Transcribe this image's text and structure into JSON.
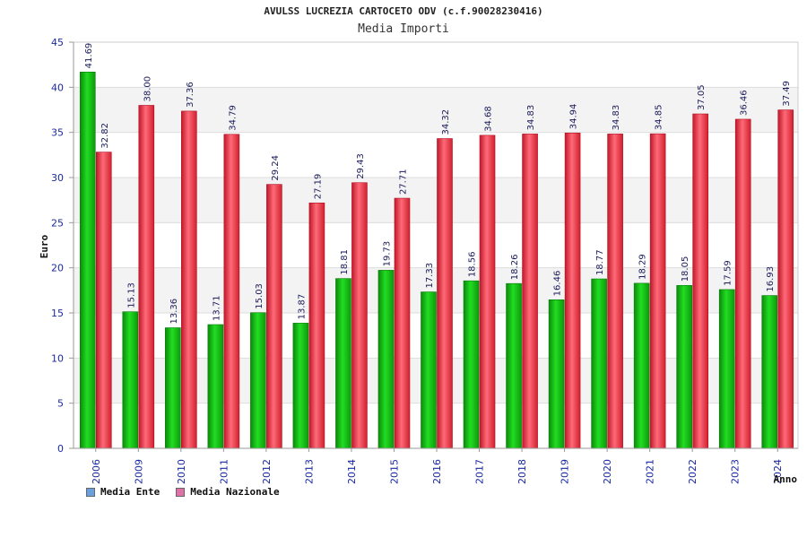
{
  "chart_data": {
    "type": "bar",
    "title": "AVULSS LUCREZIA CARTOCETO ODV (c.f.90028230416)",
    "subtitle": "Media Importi",
    "xlabel": "Anno",
    "ylabel": "Euro",
    "ylim": [
      0,
      45
    ],
    "yticks": [
      0,
      5,
      10,
      15,
      20,
      25,
      30,
      35,
      40,
      45
    ],
    "grid": true,
    "legend_position": "bottom-left",
    "categories": [
      "2006",
      "2009",
      "2010",
      "2011",
      "2012",
      "2013",
      "2014",
      "2015",
      "2016",
      "2017",
      "2018",
      "2019",
      "2020",
      "2021",
      "2022",
      "2023",
      "2024"
    ],
    "series": [
      {
        "name": "Media Ente",
        "legend_color": "#6a9fe0",
        "bar_color": "#11b811",
        "values": [
          41.69,
          15.13,
          13.36,
          13.71,
          15.03,
          13.87,
          18.81,
          19.73,
          17.33,
          18.56,
          18.26,
          16.46,
          18.77,
          18.29,
          18.05,
          17.59,
          16.93
        ],
        "labels": [
          "41.69",
          "15.13",
          "13.36",
          "13.71",
          "15.03",
          "13.87",
          "18.81",
          "19.73",
          "17.33",
          "18.56",
          "18.26",
          "16.46",
          "18.77",
          "18.29",
          "18.05",
          "17.59",
          "16.93"
        ]
      },
      {
        "name": "Media Nazionale",
        "legend_color": "#e070a8",
        "bar_color": "#ee3344",
        "values": [
          32.82,
          38.0,
          37.36,
          34.79,
          29.24,
          27.19,
          29.43,
          27.71,
          34.32,
          34.68,
          34.83,
          34.94,
          34.83,
          34.85,
          37.05,
          36.46,
          37.49
        ],
        "labels": [
          "32.82",
          "38.00",
          "37.36",
          "34.79",
          "29.24",
          "27.19",
          "29.43",
          "27.71",
          "34.32",
          "34.68",
          "34.83",
          "34.94",
          "34.83",
          "34.85",
          "37.05",
          "36.46",
          "37.49"
        ]
      }
    ]
  }
}
